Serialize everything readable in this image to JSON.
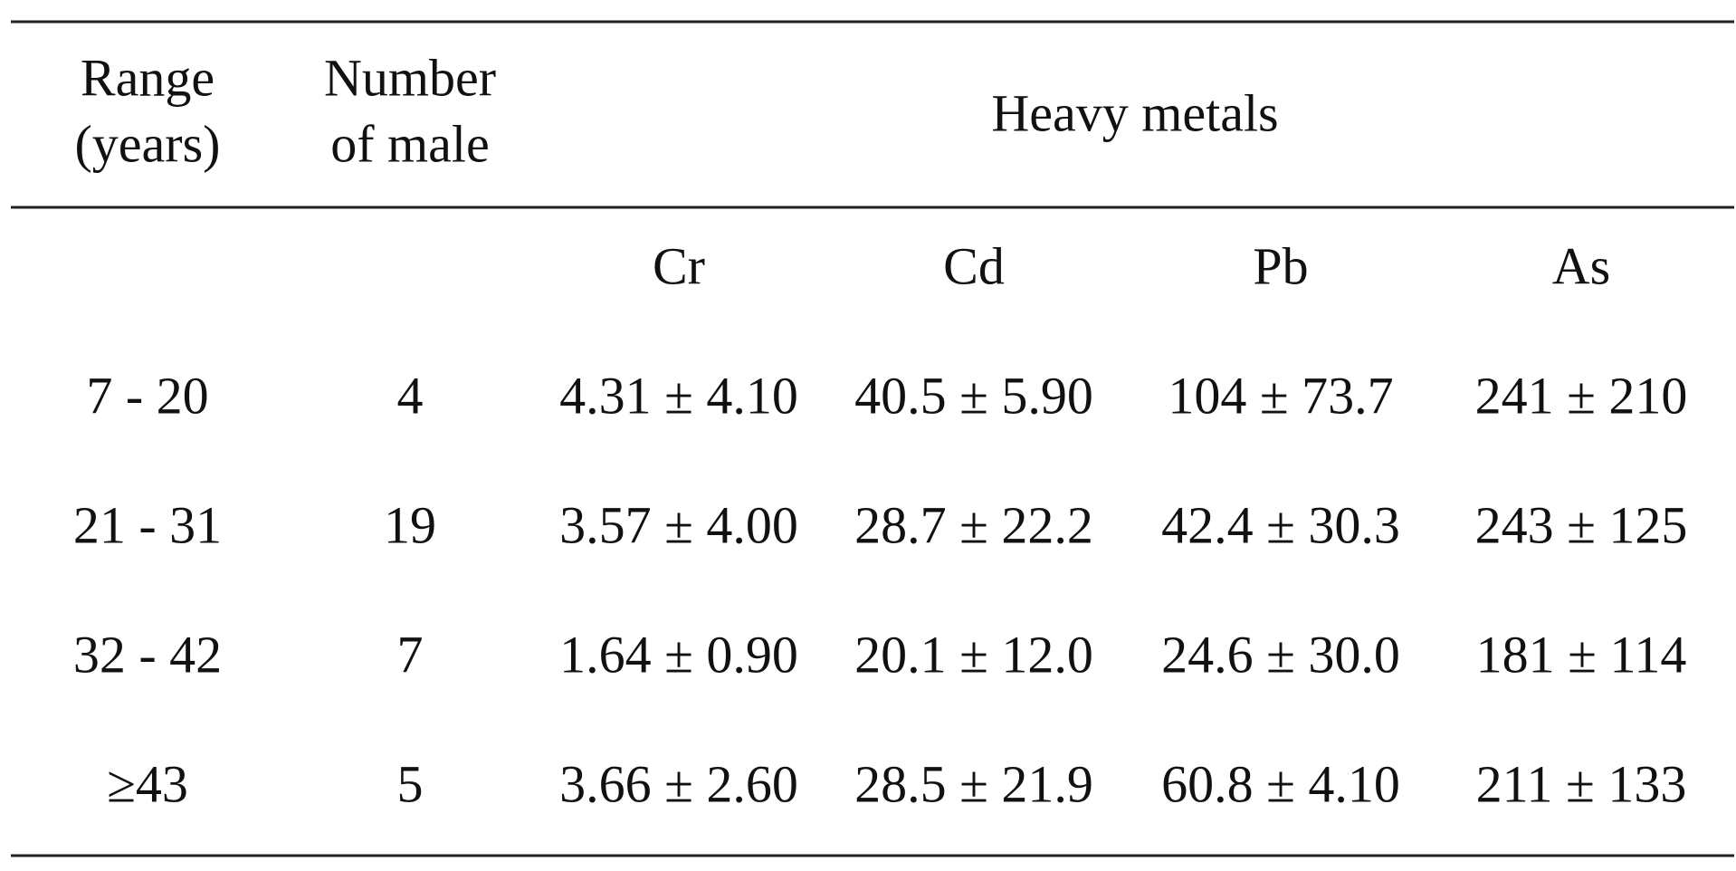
{
  "table": {
    "header": {
      "range": [
        "Range",
        "(years)"
      ],
      "number": [
        "Number",
        "of male"
      ],
      "group": "Heavy metals"
    },
    "metals": [
      "Cr",
      "Cd",
      "Pb",
      "As"
    ],
    "rows": [
      [
        "7 - 20",
        4,
        "4.31 ± 4.10",
        "40.5 ± 5.90",
        "104 ± 73.7",
        "241 ± 210"
      ],
      [
        "21 - 31",
        19,
        "3.57 ± 4.00",
        "28.7 ± 22.2",
        "42.4 ± 30.3",
        "243 ± 125"
      ],
      [
        "32 - 42",
        7,
        "1.64 ± 0.90",
        "20.1 ± 12.0",
        "24.6 ± 30.0",
        "181 ± 114"
      ],
      [
        "≥43",
        5,
        "3.66 ± 2.60",
        "28.5 ± 21.9",
        "60.8 ± 4.10",
        "211 ± 133"
      ]
    ]
  }
}
